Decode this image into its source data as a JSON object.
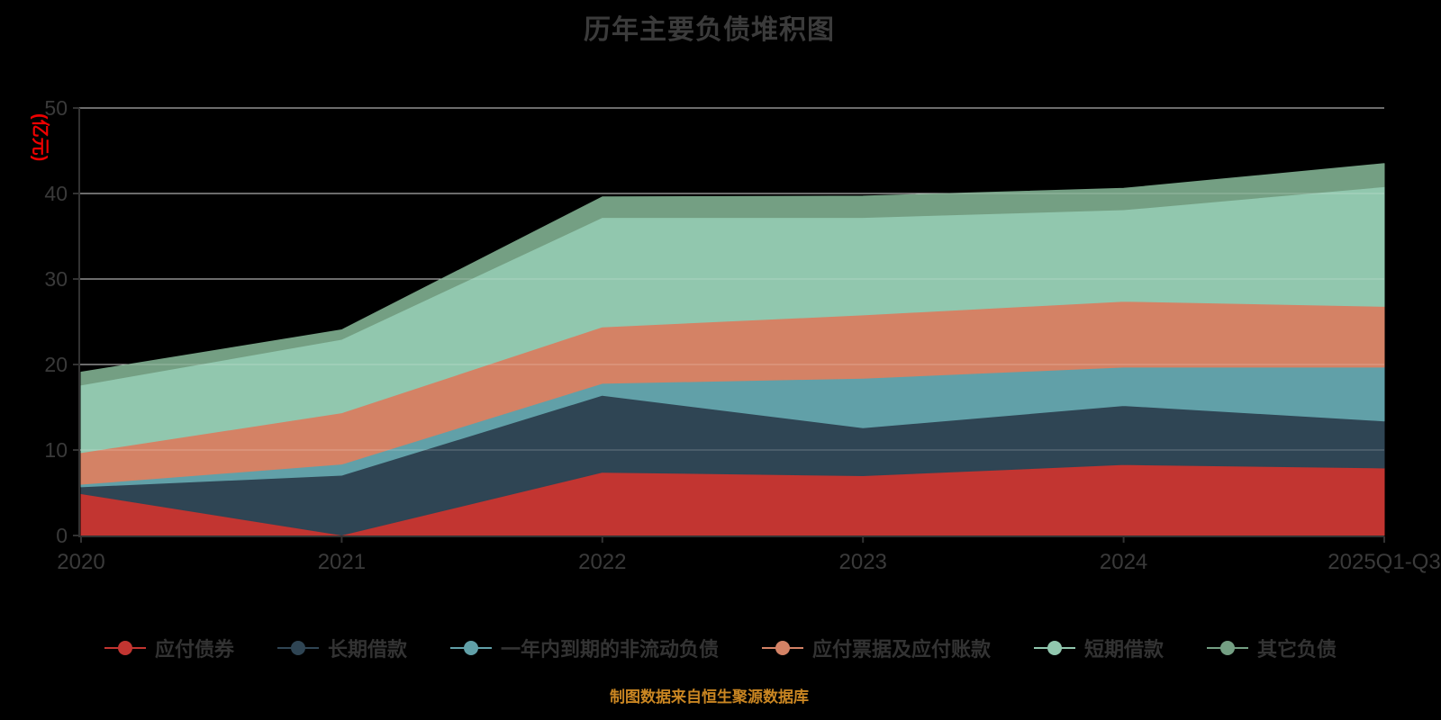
{
  "title": "历年主要负债堆积图",
  "footer": "制图数据来自恒生聚源数据库",
  "y_axis": {
    "name": "(亿元)",
    "tick_labels": [
      "0",
      "10",
      "20",
      "30",
      "40",
      "50"
    ]
  },
  "x_axis": {
    "tick_labels": [
      "2020",
      "2021",
      "2022",
      "2023",
      "2024",
      "2025Q1-Q3"
    ]
  },
  "colors": {
    "background": "#000000",
    "title": "#3b3b3b",
    "axis_line": "#333333",
    "axis_label": "#3a3a3a",
    "gridline": "#cccccc",
    "y_axis_name": "#ee0000",
    "footer": "#ca8622",
    "legend_text": "#333333"
  },
  "chart_data": {
    "type": "area",
    "stacked": true,
    "title": "历年主要负债堆积图",
    "categories": [
      "2020",
      "2021",
      "2022",
      "2023",
      "2024",
      "2025Q1-Q3"
    ],
    "ylabel": "(亿元)",
    "ylim": [
      0,
      50
    ],
    "y_tick_step": 10,
    "grid": true,
    "legend_position": "bottom",
    "series": [
      {
        "name": "应付债券",
        "id": "bonds-payable",
        "color": "#c23531",
        "values": [
          4.9,
          0.05,
          7.4,
          7.0,
          8.3,
          7.9
        ]
      },
      {
        "name": "长期借款",
        "id": "long-term-loans",
        "color": "#2f4554",
        "values": [
          0.8,
          7.0,
          9.0,
          5.6,
          6.9,
          5.5
        ]
      },
      {
        "name": "一年内到期的非流动负债",
        "id": "non-current-liabilities-due-within-one-year",
        "color": "#61a0a8",
        "values": [
          0.3,
          1.3,
          1.4,
          5.8,
          4.5,
          6.3
        ]
      },
      {
        "name": "应付票据及应付账款",
        "id": "notes-and-accounts-payable",
        "color": "#d48265",
        "values": [
          3.7,
          6.0,
          6.6,
          7.4,
          7.7,
          7.1
        ]
      },
      {
        "name": "短期借款",
        "id": "short-term-loans",
        "color": "#91c7ae",
        "values": [
          7.9,
          8.6,
          12.8,
          11.4,
          10.7,
          14.0
        ]
      },
      {
        "name": "其它负债",
        "id": "other-liabilities",
        "color": "#749f83",
        "values": [
          1.5,
          1.1,
          2.4,
          2.5,
          2.5,
          2.7
        ]
      }
    ]
  }
}
